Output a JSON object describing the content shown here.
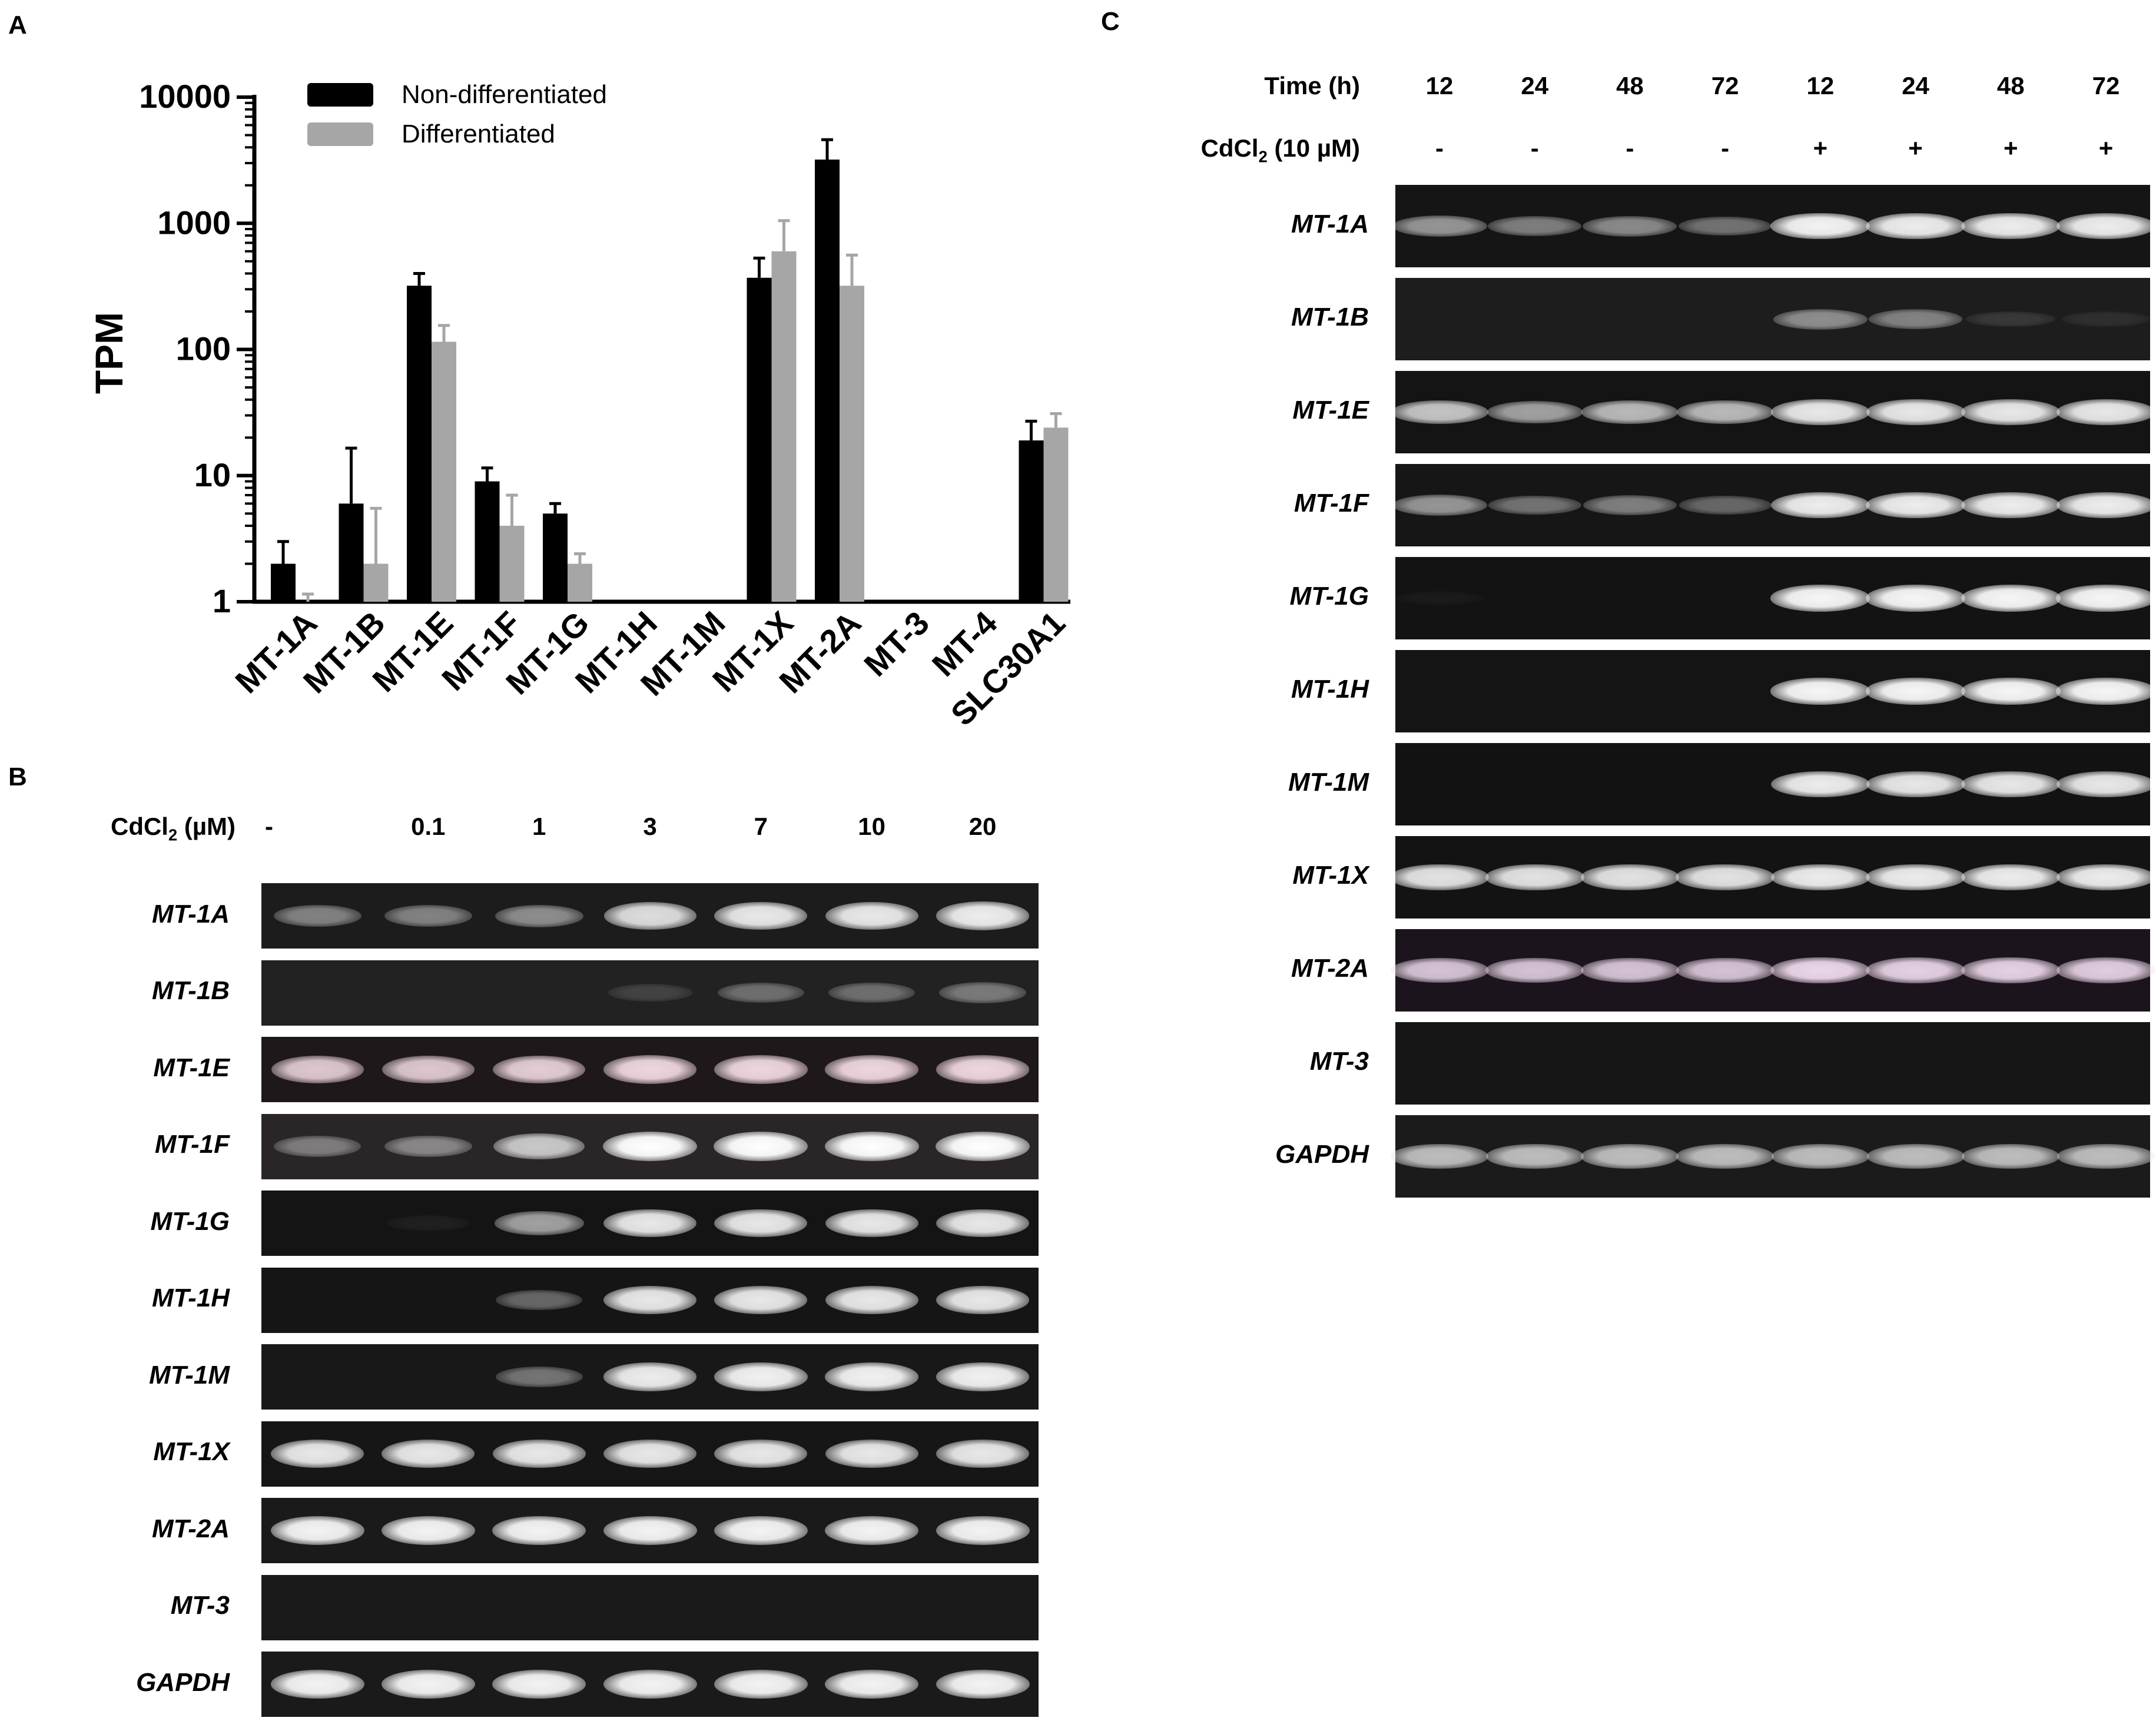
{
  "panels": {
    "a": "A",
    "b": "B",
    "c": "C"
  },
  "panel_a": {
    "ylabel": "TPM",
    "legend": [
      {
        "label": "Non-differentiated",
        "color": "#000000"
      },
      {
        "label": "Differentiated",
        "color": "#a6a6a6"
      }
    ]
  },
  "chart_data": {
    "type": "bar",
    "scale": "log",
    "ylim": [
      1,
      10000
    ],
    "yticks": [
      "1",
      "10",
      "100",
      "1000",
      "10000"
    ],
    "ytick_values": [
      1,
      10,
      100,
      1000,
      10000
    ],
    "ylabel": "TPM",
    "categories": [
      "MT-1A",
      "MT-1B",
      "MT-1E",
      "MT-1F",
      "MT-1G",
      "MT-1H",
      "MT-1M",
      "MT-1X",
      "MT-2A",
      "MT-3",
      "MT-4",
      "SLC30A1"
    ],
    "series": [
      {
        "name": "Non-differentiated",
        "color": "#000000",
        "values": [
          2,
          6,
          320,
          9,
          5,
          1,
          1,
          370,
          3200,
          1,
          1,
          19
        ],
        "errors": [
          3,
          16.5,
          400,
          11.5,
          6,
          1,
          1,
          530,
          4600,
          1,
          1,
          27
        ]
      },
      {
        "name": "Differentiated",
        "color": "#a6a6a6",
        "values": [
          1,
          2,
          115,
          4,
          2,
          1,
          1,
          600,
          320,
          1,
          1,
          24
        ],
        "errors": [
          1.15,
          5.5,
          155,
          7,
          2.4,
          1,
          1,
          1050,
          560,
          1,
          1,
          31
        ]
      }
    ],
    "legend_position": "top-left"
  },
  "panel_b": {
    "header_label": "CdCl2 (µM)",
    "header_base": "CdCl",
    "header_sub": "2",
    "header_rest": " (µM)",
    "lanes": [
      "-",
      "0.1",
      "1",
      "3",
      "7",
      "10",
      "20"
    ],
    "genes": [
      {
        "name": "MT-1A",
        "bg": "#1c1c1c",
        "color": "#ffffff",
        "intensities": [
          0.45,
          0.45,
          0.5,
          0.85,
          0.9,
          0.9,
          0.92
        ]
      },
      {
        "name": "MT-1B",
        "bg": "#222222",
        "color": "#ffffff",
        "intensities": [
          0,
          0,
          0,
          0.15,
          0.35,
          0.35,
          0.4
        ]
      },
      {
        "name": "MT-1E",
        "bg": "#1e181a",
        "color": "#ffe6ee",
        "intensities": [
          0.85,
          0.85,
          0.88,
          0.92,
          0.92,
          0.92,
          0.92
        ]
      },
      {
        "name": "MT-1F",
        "bg": "#2a2628",
        "color": "#ffffff",
        "intensities": [
          0.4,
          0.45,
          0.75,
          1,
          1,
          1,
          1
        ]
      },
      {
        "name": "MT-1G",
        "bg": "#141414",
        "color": "#ffffff",
        "intensities": [
          0,
          0.05,
          0.6,
          0.9,
          0.9,
          0.9,
          0.9
        ]
      },
      {
        "name": "MT-1H",
        "bg": "#151515",
        "color": "#ffffff",
        "intensities": [
          0,
          0,
          0.35,
          0.9,
          0.9,
          0.9,
          0.9
        ]
      },
      {
        "name": "MT-1M",
        "bg": "#181818",
        "color": "#ffffff",
        "intensities": [
          0,
          0,
          0.4,
          0.92,
          0.94,
          0.94,
          0.94
        ]
      },
      {
        "name": "MT-1X",
        "bg": "#161616",
        "color": "#ffffff",
        "intensities": [
          0.9,
          0.9,
          0.9,
          0.9,
          0.9,
          0.9,
          0.9
        ]
      },
      {
        "name": "MT-2A",
        "bg": "#1a1a1a",
        "color": "#ffffff",
        "intensities": [
          0.95,
          0.95,
          0.95,
          0.95,
          0.95,
          0.95,
          0.95
        ]
      },
      {
        "name": "MT-3",
        "bg": "#1a1a1a",
        "color": "#ffffff",
        "intensities": [
          0,
          0,
          0,
          0,
          0,
          0,
          0
        ]
      },
      {
        "name": "GAPDH",
        "bg": "#1a1a1a",
        "color": "#ffffff",
        "intensities": [
          0.95,
          0.95,
          0.95,
          0.95,
          0.95,
          0.95,
          0.95
        ]
      }
    ]
  },
  "panel_c": {
    "time_label": "Time (h)",
    "cd_label": "CdCl2 (10 µM)",
    "cd_base": "CdCl",
    "cd_sub": "2",
    "cd_rest": " (10 µM)",
    "times": [
      "12",
      "24",
      "48",
      "72",
      "12",
      "24",
      "48",
      "72"
    ],
    "treatments": [
      "-",
      "-",
      "-",
      "-",
      "+",
      "+",
      "+",
      "+"
    ],
    "genes": [
      {
        "name": "MT-1A",
        "bg": "#151515",
        "color": "#ffffff",
        "intensities": [
          0.55,
          0.45,
          0.5,
          0.4,
          0.95,
          0.92,
          0.92,
          0.92
        ]
      },
      {
        "name": "MT-1B",
        "bg": "#1d1d1d",
        "color": "#ffffff",
        "intensities": [
          0,
          0,
          0,
          0,
          0.5,
          0.45,
          0.12,
          0.08
        ]
      },
      {
        "name": "MT-1E",
        "bg": "#141414",
        "color": "#ffffff",
        "intensities": [
          0.75,
          0.6,
          0.7,
          0.7,
          0.9,
          0.9,
          0.9,
          0.9
        ]
      },
      {
        "name": "MT-1F",
        "bg": "#161616",
        "color": "#ffffff",
        "intensities": [
          0.55,
          0.4,
          0.45,
          0.35,
          0.92,
          0.92,
          0.92,
          0.92
        ]
      },
      {
        "name": "MT-1G",
        "bg": "#131313",
        "color": "#ffffff",
        "intensities": [
          0.03,
          0,
          0,
          0,
          0.96,
          0.96,
          0.96,
          0.96
        ]
      },
      {
        "name": "MT-1H",
        "bg": "#141414",
        "color": "#ffffff",
        "intensities": [
          0,
          0,
          0,
          0,
          0.96,
          0.96,
          0.96,
          0.96
        ]
      },
      {
        "name": "MT-1M",
        "bg": "#121212",
        "color": "#ffffff",
        "intensities": [
          0,
          0,
          0,
          0,
          0.92,
          0.9,
          0.9,
          0.9
        ]
      },
      {
        "name": "MT-1X",
        "bg": "#131313",
        "color": "#ffffff",
        "intensities": [
          0.88,
          0.88,
          0.88,
          0.88,
          0.92,
          0.92,
          0.92,
          0.92
        ]
      },
      {
        "name": "MT-2A",
        "bg": "#1c141c",
        "color": "#f6e1f4",
        "intensities": [
          0.85,
          0.85,
          0.85,
          0.85,
          0.95,
          0.92,
          0.92,
          0.9
        ]
      },
      {
        "name": "MT-3",
        "bg": "#161616",
        "color": "#ffffff",
        "intensities": [
          0,
          0,
          0,
          0,
          0,
          0,
          0,
          0
        ]
      },
      {
        "name": "GAPDH",
        "bg": "#1b1b1b",
        "color": "#e6e6e6",
        "intensities": [
          0.8,
          0.8,
          0.8,
          0.8,
          0.8,
          0.8,
          0.8,
          0.8
        ]
      }
    ]
  }
}
